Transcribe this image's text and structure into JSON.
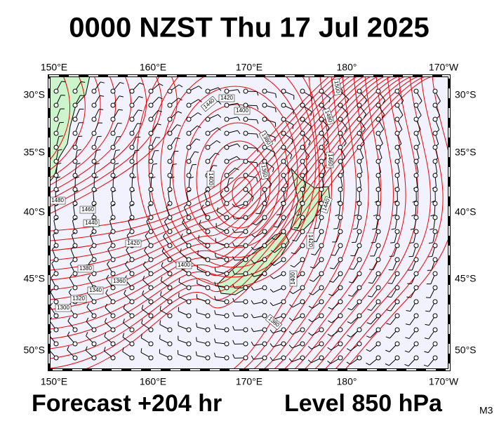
{
  "title": "0000 NZST Thu 17 Jul 2025",
  "lon_labels": [
    "150°E",
    "160°E",
    "170°E",
    "180°",
    "170°W"
  ],
  "lat_labels": [
    "30°S",
    "35°S",
    "40°S",
    "45°S",
    "50°S"
  ],
  "contour_labels": [
    "1420",
    "1400",
    "1380",
    "1360",
    "1440",
    "1400",
    "1480",
    "1460",
    "1440",
    "1420",
    "1400",
    "1380",
    "1360",
    "1340",
    "1320",
    "1300",
    "1500",
    "1480",
    "1460",
    "1440",
    "1420",
    "1400",
    "1380"
  ],
  "footer": {
    "forecast": "Forecast +204 hr",
    "level": "Level 850 hPa",
    "model": "M3"
  }
}
